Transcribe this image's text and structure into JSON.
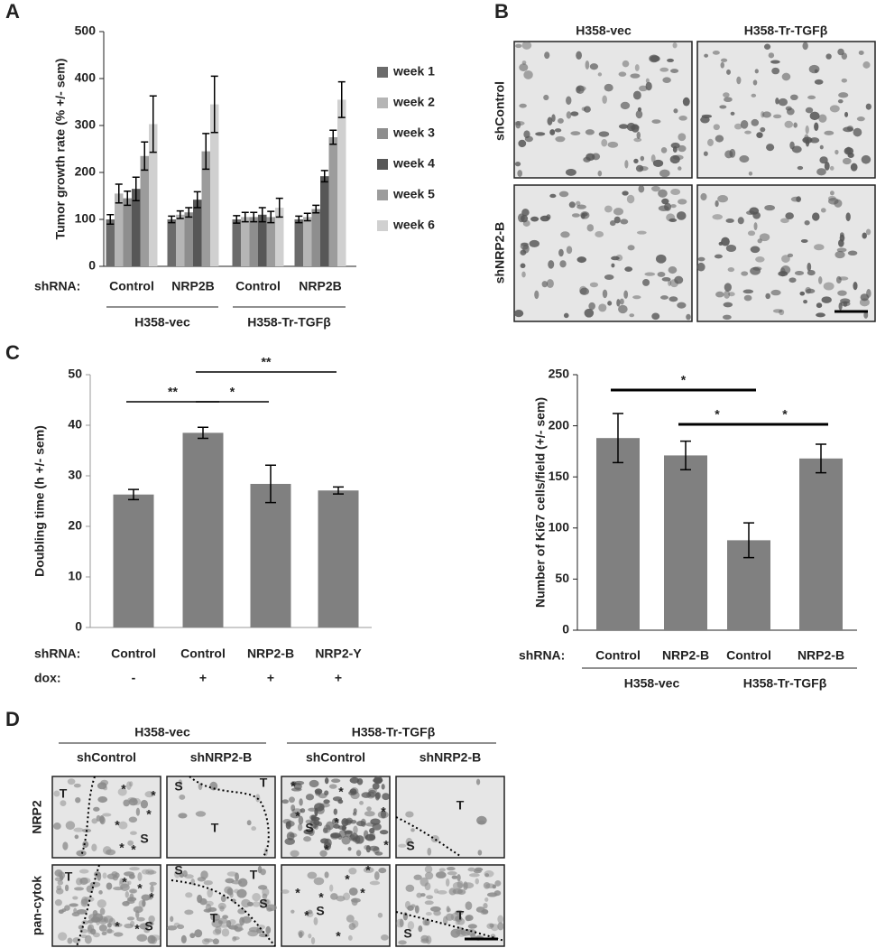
{
  "panel_labels": [
    "A",
    "B",
    "C",
    "D"
  ],
  "chart_data": [
    {
      "type": "bar",
      "y_label": "Tumor growth rate (% +/- sem)",
      "row_label": "shRNA:",
      "categories": [
        "Control",
        "NRP2B",
        "Control",
        "NRP2B"
      ],
      "groups": [
        "H358-vec",
        "H358-Tr-TGFβ"
      ],
      "ylim": [
        0,
        500
      ],
      "yticks": [
        0,
        100,
        200,
        300,
        400,
        500
      ],
      "legend": "right",
      "series": [
        {
          "name": "week 1",
          "color": "#6b6b6b",
          "values": [
            100,
            100,
            100,
            100
          ],
          "errors": [
            10,
            7,
            8,
            7
          ]
        },
        {
          "name": "week 2",
          "color": "#b5b5b5",
          "values": [
            155,
            110,
            105,
            105
          ],
          "errors": [
            20,
            8,
            10,
            8
          ]
        },
        {
          "name": "week 3",
          "color": "#8e8e8e",
          "values": [
            145,
            115,
            105,
            122
          ],
          "errors": [
            15,
            10,
            10,
            8
          ]
        },
        {
          "name": "week 4",
          "color": "#575757",
          "values": [
            165,
            142,
            110,
            192
          ],
          "errors": [
            25,
            17,
            15,
            12
          ]
        },
        {
          "name": "week 5",
          "color": "#9c9c9c",
          "values": [
            235,
            245,
            105,
            275
          ],
          "errors": [
            30,
            38,
            12,
            15
          ]
        },
        {
          "name": "week 6",
          "color": "#d0d0d0",
          "values": [
            303,
            345,
            125,
            355
          ],
          "errors": [
            60,
            60,
            20,
            38
          ]
        }
      ]
    },
    {
      "type": "bar",
      "y_label": "Doubling time (h +/- sem)",
      "row_label": "shRNA:",
      "categories": [
        "Control",
        "Control",
        "NRP2-B",
        "NRP2-Y"
      ],
      "second_row_label": "dox:",
      "second_row": [
        "-",
        "+",
        "+",
        "+"
      ],
      "values": [
        26.3,
        38.5,
        28.4,
        27.1
      ],
      "errors": [
        1.0,
        1.1,
        3.7,
        0.7
      ],
      "color": "#808080",
      "ylim": [
        0,
        50
      ],
      "yticks": [
        0,
        10,
        20,
        30,
        40,
        50
      ],
      "significance": [
        {
          "label": "**",
          "from": 0,
          "to": 1
        },
        {
          "label": "*",
          "from": 1,
          "to": 2
        },
        {
          "label": "**",
          "from": 1,
          "to": 3
        }
      ]
    },
    {
      "type": "bar",
      "y_label": "Number of Ki67 cells/field (+/- sem)",
      "row_label": "shRNA:",
      "categories": [
        "Control",
        "NRP2-B",
        "Control",
        "NRP2-B"
      ],
      "groups": [
        "H358-vec",
        "H358-Tr-TGFβ"
      ],
      "values": [
        188,
        171,
        88,
        168
      ],
      "errors": [
        24,
        14,
        17,
        14
      ],
      "color": "#808080",
      "ylim": [
        0,
        250
      ],
      "yticks": [
        0,
        50,
        100,
        150,
        200,
        250
      ],
      "significance": [
        {
          "label": "*",
          "from": 0,
          "to": 2
        },
        {
          "label": "*",
          "from": 1,
          "to": 2
        },
        {
          "label": "*",
          "from": 2,
          "to": 3
        }
      ]
    }
  ],
  "panel_b": {
    "columns": [
      "H358-vec",
      "H358-Tr-TGFβ"
    ],
    "rows": [
      "shControl",
      "shNRP2-B"
    ]
  },
  "panel_d": {
    "columns": [
      "H358-vec",
      "H358-Tr-TGFβ"
    ],
    "subcolumns": [
      "shControl",
      "shNRP2-B",
      "shControl",
      "shNRP2-B"
    ],
    "rows": [
      "NRP2",
      "pan-cytok"
    ],
    "image_marks": [
      [
        "T",
        "*",
        "*",
        "*",
        "*",
        "S",
        "*",
        "*"
      ],
      [
        "S",
        "T",
        "T"
      ],
      [
        "*",
        "*",
        "*",
        "S",
        "*",
        "*",
        "*",
        "*"
      ],
      [
        "T",
        "S"
      ],
      [
        "T",
        "*",
        "*",
        "*",
        "*",
        "*",
        "S"
      ],
      [
        "S",
        "T",
        "S",
        "T"
      ],
      [
        "*",
        "*",
        "*",
        "*",
        "*",
        "S",
        "*",
        "*"
      ],
      [
        "T",
        "S"
      ]
    ]
  }
}
